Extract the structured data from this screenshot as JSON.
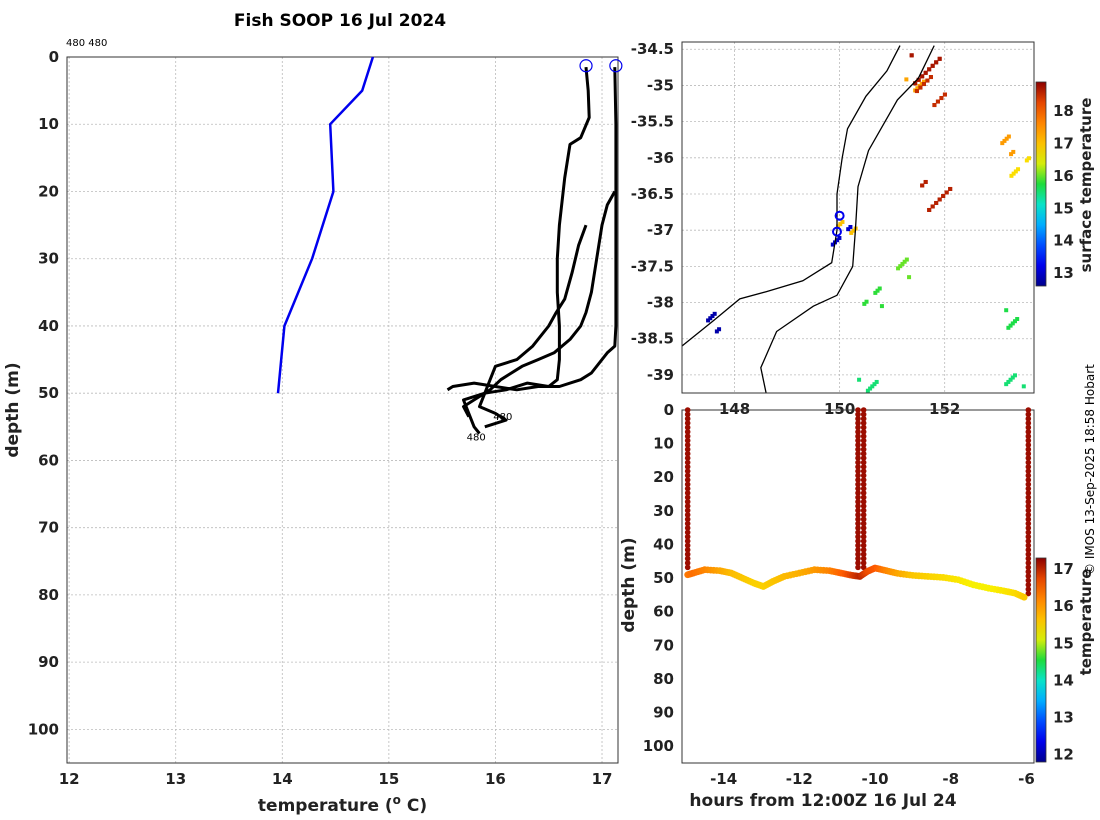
{
  "title": "Fish SOOP 16 Jul 2024",
  "top_annotation": "480 480",
  "credit": "© IMOS 13-Sep-2025 18:58 Hobart",
  "chart_data": [
    {
      "id": "profile",
      "type": "line",
      "xlabel": "temperature (",
      "xlabel_sup": "o",
      "xlabel_tail": " C)",
      "ylabel": "depth (m)",
      "xlim": [
        11.98,
        17.15
      ],
      "ylim": [
        0,
        105
      ],
      "xticks": [
        12,
        13,
        14,
        15,
        16,
        17
      ],
      "yticks": [
        0,
        10,
        20,
        30,
        40,
        50,
        60,
        70,
        80,
        90,
        100
      ],
      "series": [
        {
          "name": "climatology",
          "color": "#0000ee",
          "points": [
            [
              14.85,
              0
            ],
            [
              14.75,
              5
            ],
            [
              14.45,
              10
            ],
            [
              14.48,
              20
            ],
            [
              14.28,
              30
            ],
            [
              14.02,
              40
            ],
            [
              13.96,
              50
            ]
          ]
        },
        {
          "name": "cast-1",
          "color": "#000000",
          "points": [
            [
              16.85,
              1.5
            ],
            [
              16.87,
              5
            ],
            [
              16.88,
              9
            ],
            [
              16.8,
              12
            ],
            [
              16.7,
              13
            ],
            [
              16.65,
              18
            ],
            [
              16.6,
              25
            ],
            [
              16.58,
              30
            ],
            [
              16.58,
              35
            ],
            [
              16.6,
              40
            ],
            [
              16.6,
              45
            ],
            [
              16.58,
              48
            ],
            [
              16.5,
              49
            ],
            [
              16.3,
              48.5
            ],
            [
              16.1,
              49.5
            ],
            [
              15.9,
              50
            ],
            [
              15.7,
              51
            ],
            [
              15.75,
              53
            ],
            [
              15.8,
              55
            ],
            [
              15.85,
              56
            ]
          ]
        },
        {
          "name": "cast-2",
          "color": "#000000",
          "points": [
            [
              17.12,
              1.5
            ],
            [
              17.13,
              10
            ],
            [
              17.13,
              20
            ],
            [
              17.13,
              30
            ],
            [
              17.13,
              40
            ],
            [
              17.12,
              43
            ],
            [
              17.05,
              44
            ],
            [
              16.9,
              47
            ],
            [
              16.8,
              48
            ],
            [
              16.6,
              49
            ],
            [
              16.4,
              49
            ],
            [
              16.2,
              49.5
            ],
            [
              16.0,
              49
            ],
            [
              15.8,
              48.5
            ],
            [
              15.6,
              49
            ],
            [
              15.55,
              49.5
            ]
          ]
        },
        {
          "name": "cast-3",
          "color": "#000000",
          "points": [
            [
              17.12,
              20
            ],
            [
              17.05,
              22
            ],
            [
              17.0,
              25
            ],
            [
              16.95,
              30
            ],
            [
              16.9,
              35
            ],
            [
              16.85,
              38
            ],
            [
              16.8,
              40
            ],
            [
              16.7,
              42
            ],
            [
              16.55,
              44
            ],
            [
              16.4,
              45
            ],
            [
              16.25,
              46
            ],
            [
              16.15,
              47
            ],
            [
              16.05,
              48
            ],
            [
              15.95,
              49.5
            ],
            [
              15.8,
              51
            ],
            [
              15.7,
              52
            ],
            [
              15.75,
              53.5
            ]
          ]
        },
        {
          "name": "cast-4",
          "color": "#000000",
          "points": [
            [
              16.85,
              25
            ],
            [
              16.78,
              28
            ],
            [
              16.72,
              32
            ],
            [
              16.65,
              36
            ],
            [
              16.57,
              38
            ],
            [
              16.5,
              40
            ],
            [
              16.35,
              43
            ],
            [
              16.2,
              45
            ],
            [
              16.0,
              46
            ],
            [
              15.95,
              48
            ],
            [
              15.9,
              50
            ],
            [
              15.85,
              52
            ],
            [
              16.0,
              53
            ],
            [
              16.1,
              54
            ],
            [
              15.9,
              55
            ]
          ]
        }
      ],
      "markers": [
        {
          "x": 16.85,
          "y": 1.3,
          "color": "#0000ee"
        },
        {
          "x": 17.13,
          "y": 1.3,
          "color": "#0000ee"
        }
      ],
      "annotations": [
        {
          "text": "480",
          "x": 15.98,
          "y": 54
        },
        {
          "text": "480",
          "x": 15.73,
          "y": 57
        }
      ]
    },
    {
      "id": "map",
      "type": "heatmap",
      "colorbar_label": "surface temperature",
      "xlim": [
        147.0,
        153.7
      ],
      "ylim": [
        -39.25,
        -34.4
      ],
      "xticks_visible": [
        "148",
        "150",
        "152"
      ],
      "xticks": [
        148,
        150,
        152
      ],
      "yticks": [
        "-34.5",
        "-35",
        "-35.5",
        "-36",
        "-36.5",
        "-37",
        "-37.5",
        "-38",
        "-38.5",
        "-39"
      ],
      "colorbar_ticks": [
        13,
        14,
        15,
        16,
        17,
        18
      ],
      "colorbar_range": [
        12.6,
        18.9
      ],
      "track_points": [
        {
          "lon": 150.0,
          "lat": -36.8
        },
        {
          "lon": 149.95,
          "lat": -37.02
        }
      ],
      "sst_patches": [
        {
          "lon": 151.6,
          "lat": -34.75,
          "t": 18.7
        },
        {
          "lon": 151.4,
          "lat": -34.95,
          "t": 17.3
        },
        {
          "lon": 151.7,
          "lat": -35.05,
          "t": 18.5
        },
        {
          "lon": 153.1,
          "lat": -35.8,
          "t": 17.4
        },
        {
          "lon": 153.4,
          "lat": -36.1,
          "t": 16.7
        },
        {
          "lon": 151.8,
          "lat": -36.5,
          "t": 18.6
        },
        {
          "lon": 150.1,
          "lat": -36.95,
          "t": 17.0
        },
        {
          "lon": 151.2,
          "lat": -37.5,
          "t": 16.0
        },
        {
          "lon": 150.6,
          "lat": -37.9,
          "t": 15.8
        },
        {
          "lon": 153.3,
          "lat": -38.2,
          "t": 15.7
        },
        {
          "lon": 150.5,
          "lat": -39.1,
          "t": 15.5
        },
        {
          "lon": 153.3,
          "lat": -39.1,
          "t": 15.5
        },
        {
          "lon": 147.5,
          "lat": -38.25,
          "t": 12.8
        },
        {
          "lon": 150.0,
          "lat": -37.05,
          "t": 13.0
        }
      ],
      "coast": [
        [
          147.0,
          -38.6
        ],
        [
          147.6,
          -38.25
        ],
        [
          148.1,
          -37.95
        ],
        [
          148.6,
          -37.85
        ],
        [
          149.3,
          -37.7
        ],
        [
          149.85,
          -37.45
        ],
        [
          149.95,
          -37.0
        ],
        [
          149.95,
          -36.5
        ],
        [
          150.05,
          -36.0
        ],
        [
          150.15,
          -35.6
        ],
        [
          150.5,
          -35.15
        ],
        [
          150.9,
          -34.8
        ],
        [
          151.15,
          -34.45
        ]
      ],
      "shelf": [
        [
          148.6,
          -39.25
        ],
        [
          148.5,
          -38.9
        ],
        [
          148.8,
          -38.4
        ],
        [
          149.5,
          -38.05
        ],
        [
          149.95,
          -37.9
        ],
        [
          150.25,
          -37.5
        ],
        [
          150.3,
          -37.0
        ],
        [
          150.35,
          -36.4
        ],
        [
          150.55,
          -35.9
        ],
        [
          151.1,
          -35.2
        ],
        [
          151.5,
          -34.9
        ],
        [
          151.8,
          -34.45
        ]
      ]
    },
    {
      "id": "section",
      "type": "scatter",
      "xlabel": "hours from 12:00Z 16 Jul 24",
      "ylabel": "depth (m)",
      "colorbar_label": "temperature",
      "xlim": [
        -15.1,
        -5.8
      ],
      "ylim": [
        0,
        105
      ],
      "xticks": [
        -14,
        -12,
        -10,
        -8,
        -6
      ],
      "yticks": [
        0,
        10,
        20,
        30,
        40,
        50,
        60,
        70,
        80,
        90,
        100
      ],
      "colorbar_ticks": [
        12,
        13,
        14,
        15,
        16,
        17
      ],
      "colorbar_range": [
        11.8,
        17.3
      ],
      "tow_path": [
        [
          -14.95,
          49
        ],
        [
          -14.8,
          48.5
        ],
        [
          -14.5,
          47.5
        ],
        [
          -14.1,
          47.8
        ],
        [
          -13.8,
          48.5
        ],
        [
          -13.5,
          50
        ],
        [
          -13.2,
          51.5
        ],
        [
          -12.95,
          52.5
        ],
        [
          -12.7,
          51
        ],
        [
          -12.4,
          49.5
        ],
        [
          -12.0,
          48.5
        ],
        [
          -11.6,
          47.5
        ],
        [
          -11.2,
          47.8
        ],
        [
          -10.9,
          48.5
        ],
        [
          -10.6,
          49.2
        ],
        [
          -10.4,
          49.5
        ],
        [
          -10.2,
          48
        ],
        [
          -10.0,
          47
        ],
        [
          -9.7,
          47.8
        ],
        [
          -9.4,
          48.6
        ],
        [
          -9.0,
          49.2
        ],
        [
          -8.6,
          49.5
        ],
        [
          -8.2,
          49.8
        ],
        [
          -7.8,
          50.5
        ],
        [
          -7.4,
          52
        ],
        [
          -7.0,
          53
        ],
        [
          -6.6,
          53.8
        ],
        [
          -6.3,
          54.5
        ],
        [
          -6.0,
          56
        ]
      ],
      "tow_temps": [
        16.3,
        16.4,
        16.2,
        15.9,
        15.7,
        15.6,
        15.5,
        15.5,
        15.6,
        15.7,
        15.8,
        16.0,
        16.2,
        16.5,
        16.8,
        17.0,
        16.7,
        16.6,
        16.2,
        15.9,
        15.6,
        15.5,
        15.4,
        15.3,
        15.2,
        15.2,
        15.3,
        15.4,
        15.6
      ],
      "casts": [
        {
          "x": -14.95,
          "top": 0,
          "bottom": 48
        },
        {
          "x": -10.45,
          "top": 0,
          "bottom": 48
        },
        {
          "x": -10.3,
          "top": 0,
          "bottom": 47
        },
        {
          "x": -5.95,
          "top": 0,
          "bottom": 55
        }
      ],
      "cast_temp": 17.2
    }
  ]
}
